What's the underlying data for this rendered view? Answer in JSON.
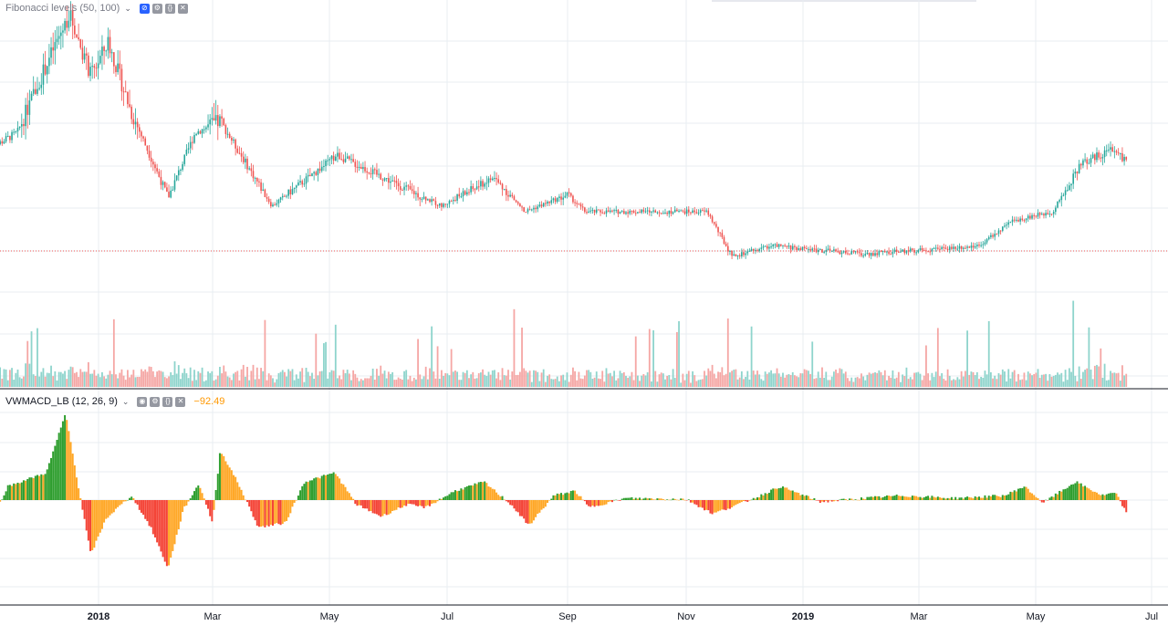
{
  "price_legend": {
    "name": "Fibonacci levels (50, 100)",
    "chevron": "⌄",
    "icons": [
      "eye-slash-icon",
      "gear-icon",
      "braces-icon",
      "close-icon"
    ]
  },
  "macd_legend": {
    "name": "VWMACD_LB (12, 26, 9)",
    "chevron": "⌄",
    "value": "−92.49",
    "icons": [
      "eye-icon",
      "gear-icon",
      "braces-icon",
      "close-icon"
    ]
  },
  "colors": {
    "up": "#26a69a",
    "down": "#ef5350",
    "grid": "#e8edf2",
    "price_line": "#ef5350",
    "macd_up_strong": "#2e9e2e",
    "macd_up_weak": "#7dc242",
    "macd_down_strong": "#f44336",
    "macd_down_weak": "#ffa726",
    "volume_up": "#8ed4cc",
    "volume_down": "#f5a6a4"
  },
  "x_axis": {
    "ticks": [
      {
        "label": "2018",
        "strong": true
      },
      {
        "label": "Mar",
        "strong": false
      },
      {
        "label": "May",
        "strong": false
      },
      {
        "label": "Jul",
        "strong": false
      },
      {
        "label": "Sep",
        "strong": false
      },
      {
        "label": "Nov",
        "strong": false
      },
      {
        "label": "2019",
        "strong": true
      },
      {
        "label": "Mar",
        "strong": false
      },
      {
        "label": "May",
        "strong": false
      },
      {
        "label": "Jul",
        "strong": false
      }
    ]
  },
  "chart_data": {
    "type": "candlestick",
    "x_range": [
      "2017-11",
      "2019-07"
    ],
    "price_trend_keypoints": [
      [
        "2017-11-05",
        52
      ],
      [
        "2017-11-20",
        58
      ],
      [
        "2017-12-05",
        82
      ],
      [
        "2017-12-17",
        100
      ],
      [
        "2017-12-28",
        78
      ],
      [
        "2018-01-06",
        90
      ],
      [
        "2018-01-18",
        65
      ],
      [
        "2018-02-06",
        35
      ],
      [
        "2018-02-20",
        58
      ],
      [
        "2018-03-05",
        62
      ],
      [
        "2018-04-01",
        32
      ],
      [
        "2018-05-05",
        50
      ],
      [
        "2018-06-28",
        32
      ],
      [
        "2018-07-25",
        42
      ],
      [
        "2018-08-10",
        30
      ],
      [
        "2018-09-01",
        36
      ],
      [
        "2018-09-10",
        30
      ],
      [
        "2018-11-12",
        30
      ],
      [
        "2018-11-25",
        14
      ],
      [
        "2018-12-15",
        18
      ],
      [
        "2019-02-01",
        15
      ],
      [
        "2019-04-01",
        18
      ],
      [
        "2019-04-20",
        27
      ],
      [
        "2019-05-10",
        30
      ],
      [
        "2019-05-25",
        47
      ],
      [
        "2019-06-10",
        52
      ],
      [
        "2019-06-18",
        48
      ]
    ],
    "last_price_line": true,
    "volume": true,
    "macd_histogram_range": [
      -92.49,
      90
    ],
    "last_macd_value": -92.49
  }
}
